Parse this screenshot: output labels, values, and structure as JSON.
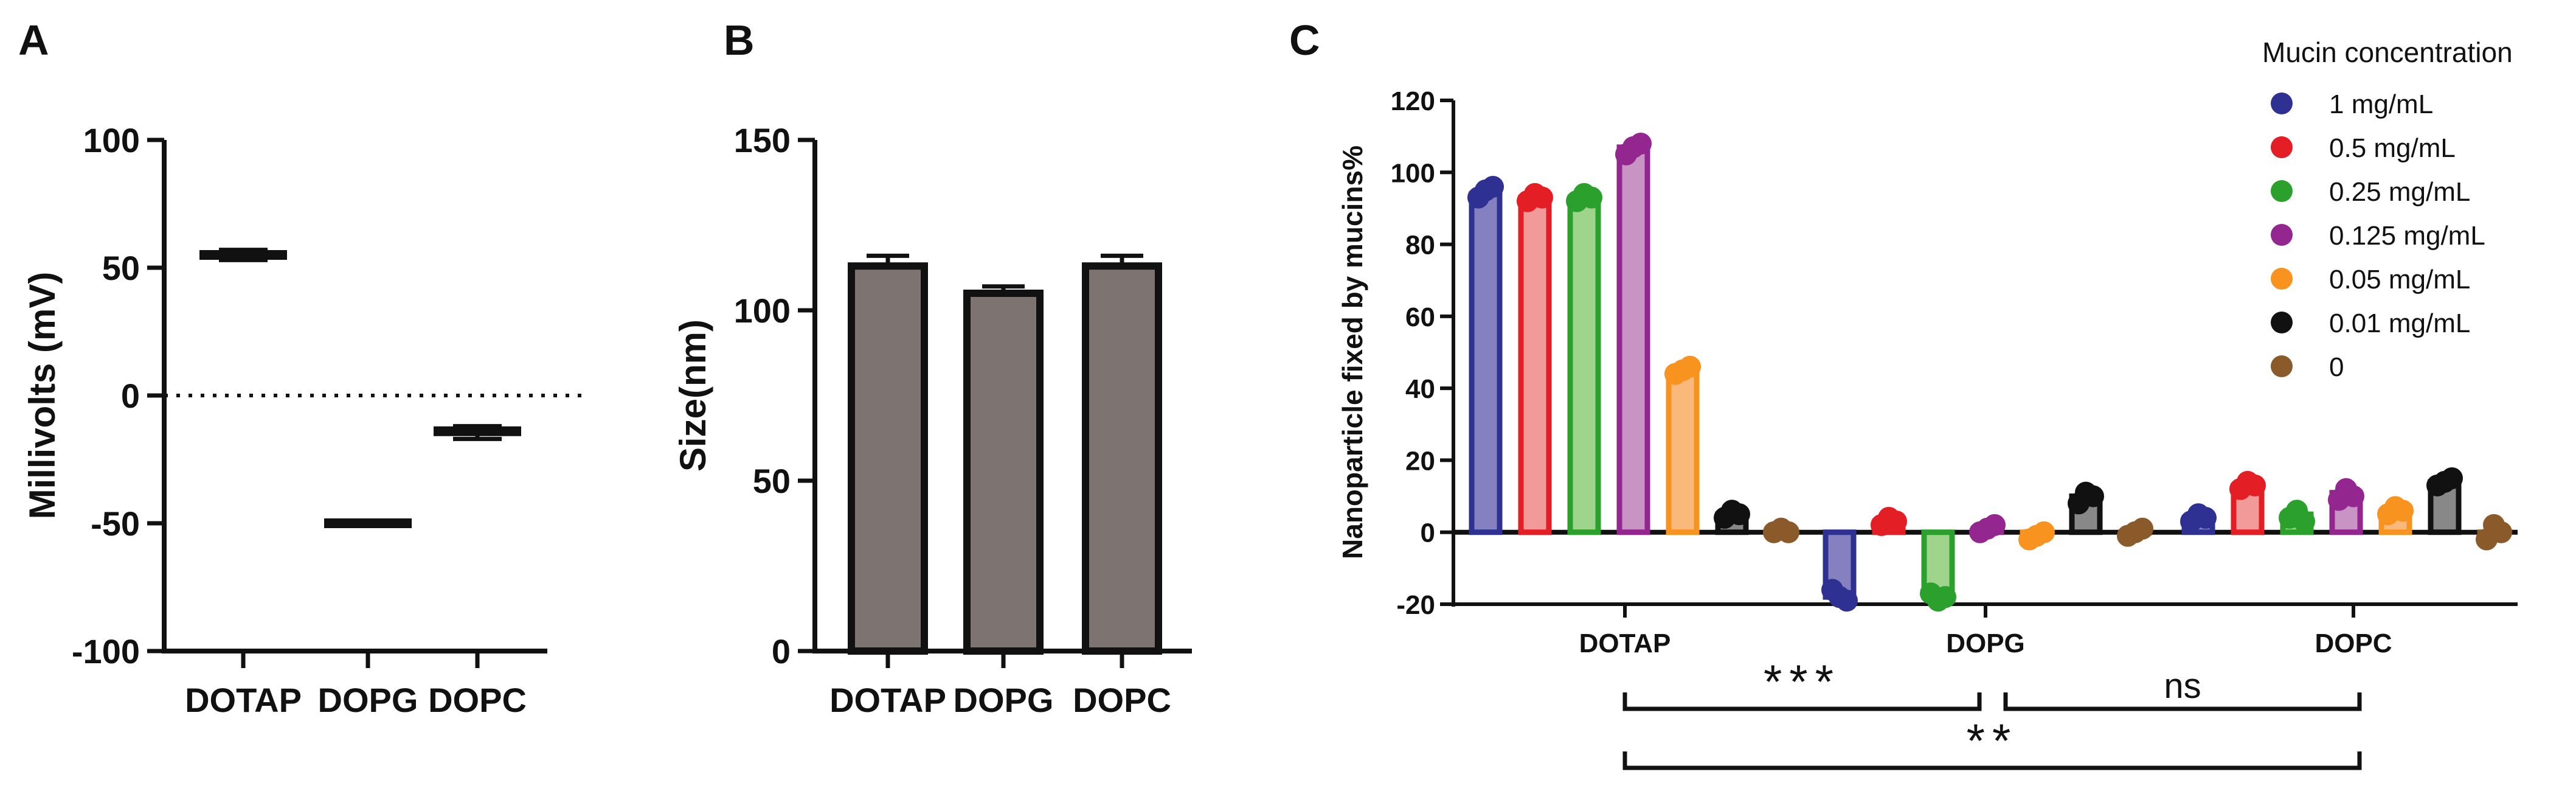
{
  "panels": {
    "A": {
      "label": "A"
    },
    "B": {
      "label": "B"
    },
    "C": {
      "label": "C"
    }
  },
  "chart_data": [
    {
      "panel": "A",
      "type": "scatter",
      "categories": [
        "DOTAP",
        "DOPG",
        "DOPC"
      ],
      "values": [
        55,
        -50,
        -14
      ],
      "error": [
        [
          53,
          57
        ],
        [
          -51,
          -49
        ],
        [
          -17,
          -12
        ]
      ],
      "ylabel": "Millivolts (mV)",
      "ylim": [
        -100,
        100
      ],
      "yticks": [
        100,
        50,
        0,
        -50,
        -100
      ],
      "zero_line": "dotted"
    },
    {
      "panel": "B",
      "type": "bar",
      "categories": [
        "DOTAP",
        "DOPG",
        "DOPC"
      ],
      "values": [
        113,
        105,
        113
      ],
      "error_upper": [
        116,
        107,
        116
      ],
      "ylabel": "Size(nm)",
      "ylim": [
        0,
        150
      ],
      "yticks": [
        150,
        100,
        50,
        0
      ],
      "bar_color": "#7d7471"
    },
    {
      "panel": "C",
      "type": "bar",
      "categories": [
        "DOTAP",
        "DOPG",
        "DOPC"
      ],
      "ylabel": "Nanoparticle fixed by mucins%",
      "ylim": [
        -20,
        120
      ],
      "yticks": [
        120,
        100,
        80,
        60,
        40,
        20,
        0,
        -20
      ],
      "legend_title": "Mucin concentration",
      "legend_position": "right",
      "series": [
        {
          "name": "1 mg/mL",
          "color": "#2e3192",
          "fill": "#8580c0",
          "values": [
            94,
            -18,
            4
          ],
          "points": [
            [
              93,
              95,
              96
            ],
            [
              -16,
              -18,
              -19
            ],
            [
              3,
              5,
              4
            ]
          ]
        },
        {
          "name": "0.5 mg/mL",
          "color": "#e31e24",
          "fill": "#f29a9a",
          "values": [
            93,
            3,
            13
          ],
          "points": [
            [
              92,
              94,
              93
            ],
            [
              2,
              4,
              3
            ],
            [
              12,
              14,
              13
            ]
          ]
        },
        {
          "name": "0.25 mg/mL",
          "color": "#2ca02c",
          "fill": "#9ed48b",
          "values": [
            93,
            -18,
            5
          ],
          "points": [
            [
              92,
              94,
              93
            ],
            [
              -17,
              -19,
              -18
            ],
            [
              4,
              6,
              3
            ]
          ]
        },
        {
          "name": "0.125 mg/mL",
          "color": "#93278f",
          "fill": "#c894c4",
          "values": [
            107,
            1,
            11
          ],
          "points": [
            [
              105,
              107,
              108
            ],
            [
              0,
              1,
              2
            ],
            [
              9,
              12,
              10
            ]
          ]
        },
        {
          "name": "0.05 mg/mL",
          "color": "#f7931e",
          "fill": "#f9b97a",
          "values": [
            45,
            -1,
            6
          ],
          "points": [
            [
              44,
              45,
              46
            ],
            [
              -2,
              -1,
              0
            ],
            [
              5,
              7,
              6
            ]
          ]
        },
        {
          "name": "0.01 mg/mL",
          "color": "#111111",
          "fill": "#888888",
          "values": [
            5,
            10,
            14
          ],
          "points": [
            [
              4,
              6,
              5
            ],
            [
              8,
              11,
              10
            ],
            [
              13,
              14,
              15
            ]
          ]
        },
        {
          "name": "0",
          "color": "#8b5a2b",
          "fill": "#b48a63",
          "values": [
            0,
            0,
            0
          ],
          "points": [
            [
              0,
              1,
              0
            ],
            [
              -1,
              0,
              1
            ],
            [
              -2,
              2,
              0
            ]
          ]
        }
      ],
      "significance": [
        {
          "from": "DOTAP",
          "to": "DOPG",
          "label": "***"
        },
        {
          "from": "DOPG",
          "to": "DOPC",
          "label": "ns"
        },
        {
          "from": "DOTAP",
          "to": "DOPC",
          "label": "**"
        }
      ]
    }
  ]
}
